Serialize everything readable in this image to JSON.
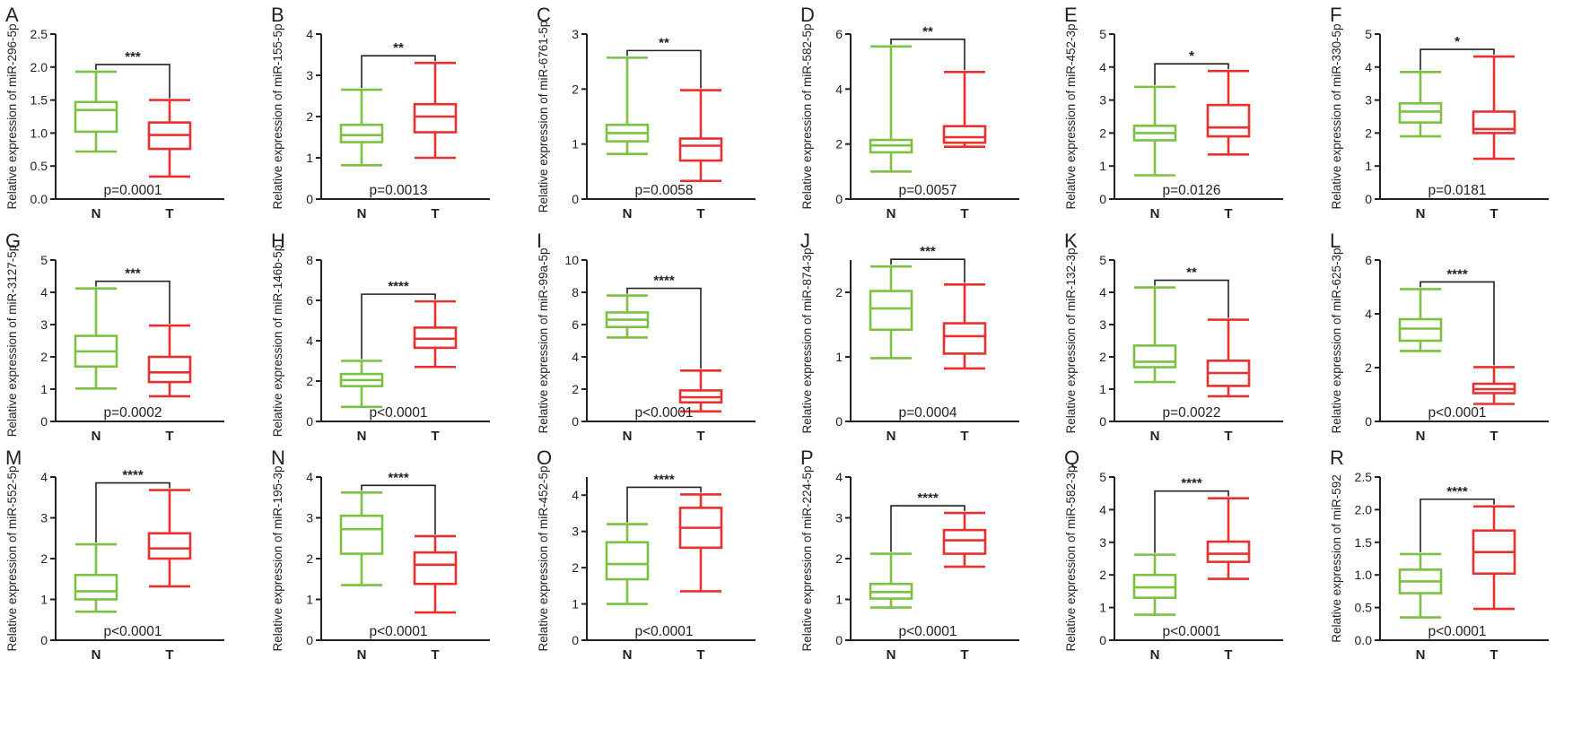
{
  "figure": {
    "group_labels": [
      "N",
      "T"
    ]
  },
  "colors": {
    "N": "#7dc142",
    "T": "#e8312f",
    "axis": "#222222"
  },
  "chart_data": [
    {
      "type": "box",
      "panel": "A",
      "ylabel": "Relative expression of miR-296-5p",
      "ylim": [
        0,
        2.5
      ],
      "yticks": [
        "0.0",
        "0.5",
        "1.0",
        "1.5",
        "2.0",
        "2.5"
      ],
      "categories": [
        "N",
        "T"
      ],
      "series": [
        {
          "name": "N",
          "min": 0.72,
          "q1": 1.02,
          "median": 1.35,
          "q3": 1.47,
          "max": 1.93
        },
        {
          "name": "T",
          "min": 0.34,
          "q1": 0.76,
          "median": 0.97,
          "q3": 1.16,
          "max": 1.5
        }
      ],
      "stars": "***",
      "pvalue": "p=0.0001"
    },
    {
      "type": "box",
      "panel": "B",
      "ylabel": "Relative expression of miR-155-5p",
      "ylim": [
        0,
        4
      ],
      "yticks": [
        "0",
        "1",
        "2",
        "3",
        "4"
      ],
      "categories": [
        "N",
        "T"
      ],
      "series": [
        {
          "name": "N",
          "min": 0.82,
          "q1": 1.38,
          "median": 1.55,
          "q3": 1.8,
          "max": 2.65
        },
        {
          "name": "T",
          "min": 1.0,
          "q1": 1.62,
          "median": 2.0,
          "q3": 2.3,
          "max": 3.3
        }
      ],
      "stars": "**",
      "pvalue": "p=0.0013"
    },
    {
      "type": "box",
      "panel": "C",
      "ylabel": "Relative expression of miR-6761-5p",
      "ylim": [
        0,
        3
      ],
      "yticks": [
        "0",
        "1",
        "2",
        "3"
      ],
      "categories": [
        "N",
        "T"
      ],
      "series": [
        {
          "name": "N",
          "min": 0.82,
          "q1": 1.05,
          "median": 1.2,
          "q3": 1.35,
          "max": 2.57
        },
        {
          "name": "T",
          "min": 0.33,
          "q1": 0.7,
          "median": 0.97,
          "q3": 1.1,
          "max": 1.98
        }
      ],
      "stars": "**",
      "pvalue": "p=0.0058"
    },
    {
      "type": "box",
      "panel": "D",
      "ylabel": "Relative expression of miR-582-5p",
      "ylim": [
        0,
        6
      ],
      "yticks": [
        "0",
        "2",
        "4",
        "6"
      ],
      "categories": [
        "N",
        "T"
      ],
      "series": [
        {
          "name": "N",
          "min": 1.0,
          "q1": 1.7,
          "median": 1.95,
          "q3": 2.15,
          "max": 5.55
        },
        {
          "name": "T",
          "min": 1.9,
          "q1": 2.05,
          "median": 2.25,
          "q3": 2.65,
          "max": 4.62
        }
      ],
      "stars": "**",
      "pvalue": "p=0.0057"
    },
    {
      "type": "box",
      "panel": "E",
      "ylabel": "Relative expression of miR-452-3p",
      "ylim": [
        0,
        5
      ],
      "yticks": [
        "0",
        "1",
        "2",
        "3",
        "4",
        "5"
      ],
      "categories": [
        "N",
        "T"
      ],
      "series": [
        {
          "name": "N",
          "min": 0.72,
          "q1": 1.78,
          "median": 2.0,
          "q3": 2.22,
          "max": 3.4
        },
        {
          "name": "T",
          "min": 1.35,
          "q1": 1.9,
          "median": 2.17,
          "q3": 2.85,
          "max": 3.88
        }
      ],
      "stars": "*",
      "pvalue": "p=0.0126"
    },
    {
      "type": "box",
      "panel": "F",
      "ylabel": "Relative expression of miR-330-5p",
      "ylim": [
        0,
        5
      ],
      "yticks": [
        "0",
        "1",
        "2",
        "3",
        "4",
        "5"
      ],
      "categories": [
        "N",
        "T"
      ],
      "series": [
        {
          "name": "N",
          "min": 1.9,
          "q1": 2.32,
          "median": 2.65,
          "q3": 2.9,
          "max": 3.85
        },
        {
          "name": "T",
          "min": 1.22,
          "q1": 2.0,
          "median": 2.12,
          "q3": 2.65,
          "max": 4.32
        }
      ],
      "stars": "*",
      "pvalue": "p=0.0181"
    },
    {
      "type": "box",
      "panel": "G",
      "ylabel": "Relative expression of miR-3127-5p",
      "ylim": [
        0,
        5
      ],
      "yticks": [
        "0",
        "1",
        "2",
        "3",
        "4",
        "5"
      ],
      "categories": [
        "N",
        "T"
      ],
      "series": [
        {
          "name": "N",
          "min": 1.02,
          "q1": 1.7,
          "median": 2.17,
          "q3": 2.65,
          "max": 4.12
        },
        {
          "name": "T",
          "min": 0.78,
          "q1": 1.22,
          "median": 1.52,
          "q3": 2.0,
          "max": 2.97
        }
      ],
      "stars": "***",
      "pvalue": "p=0.0002"
    },
    {
      "type": "box",
      "panel": "H",
      "ylabel": "Relative expression of miR-146b-5p",
      "ylim": [
        0,
        8
      ],
      "yticks": [
        "0",
        "2",
        "4",
        "6",
        "8"
      ],
      "categories": [
        "N",
        "T"
      ],
      "series": [
        {
          "name": "N",
          "min": 0.72,
          "q1": 1.75,
          "median": 2.05,
          "q3": 2.35,
          "max": 3.0
        },
        {
          "name": "T",
          "min": 2.7,
          "q1": 3.65,
          "median": 4.1,
          "q3": 4.65,
          "max": 5.95
        }
      ],
      "stars": "****",
      "pvalue": "p<0.0001"
    },
    {
      "type": "box",
      "panel": "I",
      "ylabel": "Relative expression of miR-99a-5p",
      "ylim": [
        0,
        10
      ],
      "yticks": [
        "0",
        "2",
        "4",
        "6",
        "8",
        "10"
      ],
      "categories": [
        "N",
        "T"
      ],
      "series": [
        {
          "name": "N",
          "min": 5.2,
          "q1": 5.85,
          "median": 6.3,
          "q3": 6.75,
          "max": 7.8
        },
        {
          "name": "T",
          "min": 0.62,
          "q1": 1.18,
          "median": 1.5,
          "q3": 1.92,
          "max": 3.15
        }
      ],
      "stars": "****",
      "pvalue": "p<0.0001"
    },
    {
      "type": "box",
      "panel": "J",
      "ylabel": "Relative expression of miR-874-3p",
      "ylim": [
        0,
        2.5
      ],
      "yticks": [
        "0",
        "1",
        "2"
      ],
      "categories": [
        "N",
        "T"
      ],
      "series": [
        {
          "name": "N",
          "min": 0.98,
          "q1": 1.42,
          "median": 1.75,
          "q3": 2.02,
          "max": 2.4
        },
        {
          "name": "T",
          "min": 0.82,
          "q1": 1.05,
          "median": 1.32,
          "q3": 1.52,
          "max": 2.12
        }
      ],
      "stars": "***",
      "pvalue": "p=0.0004"
    },
    {
      "type": "box",
      "panel": "K",
      "ylabel": "Relative expression of miR-132-3p",
      "ylim": [
        0,
        5
      ],
      "yticks": [
        "0",
        "1",
        "2",
        "3",
        "4",
        "5"
      ],
      "categories": [
        "N",
        "T"
      ],
      "series": [
        {
          "name": "N",
          "min": 1.22,
          "q1": 1.68,
          "median": 1.85,
          "q3": 2.35,
          "max": 4.15
        },
        {
          "name": "T",
          "min": 0.78,
          "q1": 1.1,
          "median": 1.5,
          "q3": 1.88,
          "max": 3.15
        }
      ],
      "stars": "**",
      "pvalue": "p=0.0022"
    },
    {
      "type": "box",
      "panel": "L",
      "ylabel": "Relative expression of miR-625-3p",
      "ylim": [
        0,
        6
      ],
      "yticks": [
        "0",
        "2",
        "4",
        "6"
      ],
      "categories": [
        "N",
        "T"
      ],
      "series": [
        {
          "name": "N",
          "min": 2.62,
          "q1": 3.0,
          "median": 3.45,
          "q3": 3.8,
          "max": 4.92
        },
        {
          "name": "T",
          "min": 0.65,
          "q1": 1.05,
          "median": 1.2,
          "q3": 1.4,
          "max": 2.02
        }
      ],
      "stars": "****",
      "pvalue": "p<0.0001"
    },
    {
      "type": "box",
      "panel": "M",
      "ylabel": "Relative expression of miR-552-5p",
      "ylim": [
        0,
        4
      ],
      "yticks": [
        "0",
        "1",
        "2",
        "3",
        "4"
      ],
      "categories": [
        "N",
        "T"
      ],
      "series": [
        {
          "name": "N",
          "min": 0.7,
          "q1": 1.0,
          "median": 1.2,
          "q3": 1.6,
          "max": 2.35
        },
        {
          "name": "T",
          "min": 1.32,
          "q1": 2.0,
          "median": 2.25,
          "q3": 2.62,
          "max": 3.68
        }
      ],
      "stars": "****",
      "pvalue": "p<0.0001"
    },
    {
      "type": "box",
      "panel": "N",
      "ylabel": "Relative expression of miR-195-3p",
      "ylim": [
        0,
        4
      ],
      "yticks": [
        "0",
        "1",
        "2",
        "3",
        "4"
      ],
      "categories": [
        "N",
        "T"
      ],
      "series": [
        {
          "name": "N",
          "min": 1.35,
          "q1": 2.12,
          "median": 2.72,
          "q3": 3.05,
          "max": 3.62
        },
        {
          "name": "T",
          "min": 0.68,
          "q1": 1.38,
          "median": 1.85,
          "q3": 2.15,
          "max": 2.55
        }
      ],
      "stars": "****",
      "pvalue": "p<0.0001"
    },
    {
      "type": "box",
      "panel": "O",
      "ylabel": "Relative expression of miR-452-5p",
      "ylim": [
        0,
        4.5
      ],
      "yticks": [
        "0",
        "1",
        "2",
        "3",
        "4"
      ],
      "categories": [
        "N",
        "T"
      ],
      "series": [
        {
          "name": "N",
          "min": 1.0,
          "q1": 1.68,
          "median": 2.1,
          "q3": 2.7,
          "max": 3.2
        },
        {
          "name": "T",
          "min": 1.35,
          "q1": 2.55,
          "median": 3.1,
          "q3": 3.65,
          "max": 4.02
        }
      ],
      "stars": "****",
      "pvalue": "p<0.0001"
    },
    {
      "type": "box",
      "panel": "P",
      "ylabel": "Relative expression of miR-224-5p",
      "ylim": [
        0,
        4
      ],
      "yticks": [
        "0",
        "1",
        "2",
        "3",
        "4"
      ],
      "categories": [
        "N",
        "T"
      ],
      "series": [
        {
          "name": "N",
          "min": 0.8,
          "q1": 1.02,
          "median": 1.18,
          "q3": 1.38,
          "max": 2.12
        },
        {
          "name": "T",
          "min": 1.8,
          "q1": 2.12,
          "median": 2.45,
          "q3": 2.7,
          "max": 3.12
        }
      ],
      "stars": "****",
      "pvalue": "p<0.0001"
    },
    {
      "type": "box",
      "panel": "Q",
      "ylabel": "Relative expression of miR-582-3p",
      "ylim": [
        0,
        5
      ],
      "yticks": [
        "0",
        "1",
        "2",
        "3",
        "4",
        "5"
      ],
      "categories": [
        "N",
        "T"
      ],
      "series": [
        {
          "name": "N",
          "min": 0.78,
          "q1": 1.3,
          "median": 1.62,
          "q3": 2.0,
          "max": 2.62
        },
        {
          "name": "T",
          "min": 1.88,
          "q1": 2.4,
          "median": 2.65,
          "q3": 3.02,
          "max": 4.35
        }
      ],
      "stars": "****",
      "pvalue": "p<0.0001"
    },
    {
      "type": "box",
      "panel": "R",
      "ylabel": "Relative expression of miR-592",
      "ylim": [
        0,
        2.5
      ],
      "yticks": [
        "0.0",
        "0.5",
        "1.0",
        "1.5",
        "2.0",
        "2.5"
      ],
      "categories": [
        "N",
        "T"
      ],
      "series": [
        {
          "name": "N",
          "min": 0.35,
          "q1": 0.72,
          "median": 0.9,
          "q3": 1.08,
          "max": 1.32
        },
        {
          "name": "T",
          "min": 0.48,
          "q1": 1.02,
          "median": 1.35,
          "q3": 1.68,
          "max": 2.05
        }
      ],
      "stars": "****",
      "pvalue": "p<0.0001"
    }
  ]
}
